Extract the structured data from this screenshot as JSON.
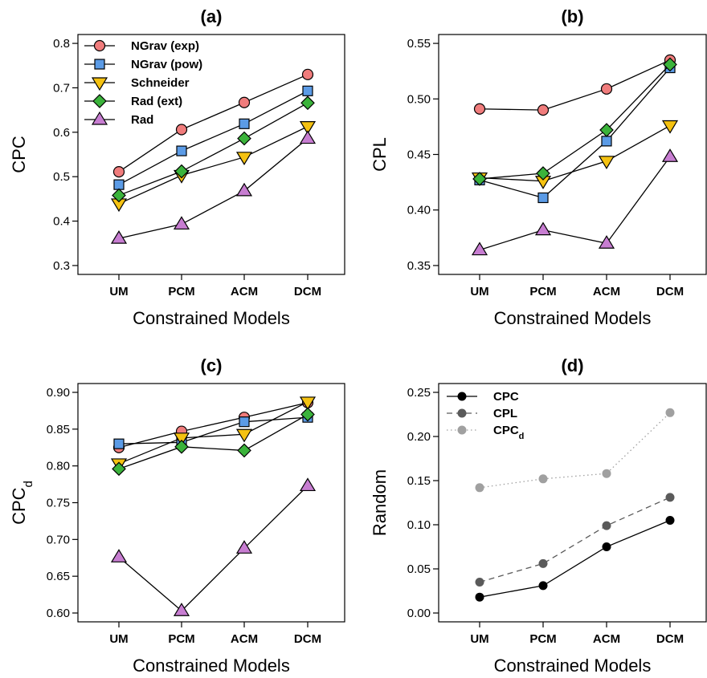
{
  "chart_data": [
    {
      "type": "line",
      "title": "(a)",
      "xlabel": "Constrained Models",
      "ylabel": "CPC",
      "ylabel_sub": "",
      "categories": [
        "UM",
        "PCM",
        "ACM",
        "DCM"
      ],
      "ylim": [
        0.3,
        0.8
      ],
      "yticks": [
        "0.3",
        "0.4",
        "0.5",
        "0.6",
        "0.7",
        "0.8"
      ],
      "legend_position": "top-left",
      "series": [
        {
          "name": "NGrav (exp)",
          "marker": "circle",
          "color": "#f07c7c",
          "line": "solid",
          "values": [
            0.511,
            0.606,
            0.667,
            0.73
          ]
        },
        {
          "name": "NGrav (pow)",
          "marker": "square",
          "color": "#5b9be6",
          "line": "solid",
          "values": [
            0.482,
            0.558,
            0.619,
            0.693
          ]
        },
        {
          "name": "Schneider",
          "marker": "triangle-down",
          "color": "#f5c211",
          "line": "solid",
          "values": [
            0.439,
            0.503,
            0.544,
            0.613
          ]
        },
        {
          "name": "Rad (ext)",
          "marker": "diamond",
          "color": "#3bb33b",
          "line": "solid",
          "values": [
            0.458,
            0.512,
            0.586,
            0.666
          ]
        },
        {
          "name": "Rad",
          "marker": "triangle-up",
          "color": "#c77dd1",
          "line": "solid",
          "values": [
            0.361,
            0.393,
            0.468,
            0.586
          ]
        }
      ]
    },
    {
      "type": "line",
      "title": "(b)",
      "xlabel": "Constrained Models",
      "ylabel": "CPL",
      "ylabel_sub": "",
      "categories": [
        "UM",
        "PCM",
        "ACM",
        "DCM"
      ],
      "ylim": [
        0.35,
        0.55
      ],
      "yticks": [
        "0.35",
        "0.40",
        "0.45",
        "0.50",
        "0.55"
      ],
      "series": [
        {
          "name": "NGrav (exp)",
          "marker": "circle",
          "color": "#f07c7c",
          "line": "solid",
          "values": [
            0.491,
            0.49,
            0.509,
            0.535
          ]
        },
        {
          "name": "NGrav (pow)",
          "marker": "square",
          "color": "#5b9be6",
          "line": "solid",
          "values": [
            0.427,
            0.411,
            0.462,
            0.528
          ]
        },
        {
          "name": "Schneider",
          "marker": "triangle-down",
          "color": "#f5c211",
          "line": "solid",
          "values": [
            0.429,
            0.426,
            0.444,
            0.476
          ]
        },
        {
          "name": "Rad (ext)",
          "marker": "diamond",
          "color": "#3bb33b",
          "line": "solid",
          "values": [
            0.428,
            0.433,
            0.472,
            0.531
          ]
        },
        {
          "name": "Rad",
          "marker": "triangle-up",
          "color": "#c77dd1",
          "line": "solid",
          "values": [
            0.364,
            0.382,
            0.37,
            0.448
          ]
        }
      ]
    },
    {
      "type": "line",
      "title": "(c)",
      "xlabel": "Constrained Models",
      "ylabel": "CPC",
      "ylabel_sub": "d",
      "categories": [
        "UM",
        "PCM",
        "ACM",
        "DCM"
      ],
      "ylim": [
        0.6,
        0.9
      ],
      "yticks": [
        "0.60",
        "0.65",
        "0.70",
        "0.75",
        "0.80",
        "0.85",
        "0.90"
      ],
      "series": [
        {
          "name": "NGrav (exp)",
          "marker": "circle",
          "color": "#f07c7c",
          "line": "solid",
          "values": [
            0.825,
            0.847,
            0.866,
            0.886
          ]
        },
        {
          "name": "NGrav (pow)",
          "marker": "square",
          "color": "#5b9be6",
          "line": "solid",
          "values": [
            0.83,
            0.832,
            0.86,
            0.866
          ]
        },
        {
          "name": "Schneider",
          "marker": "triangle-down",
          "color": "#f5c211",
          "line": "solid",
          "values": [
            0.803,
            0.838,
            0.843,
            0.887
          ]
        },
        {
          "name": "Rad (ext)",
          "marker": "diamond",
          "color": "#3bb33b",
          "line": "solid",
          "values": [
            0.796,
            0.826,
            0.821,
            0.87
          ]
        },
        {
          "name": "Rad",
          "marker": "triangle-up",
          "color": "#c77dd1",
          "line": "solid",
          "values": [
            0.676,
            0.603,
            0.688,
            0.773
          ]
        }
      ]
    },
    {
      "type": "line",
      "title": "(d)",
      "xlabel": "Constrained Models",
      "ylabel": "Random",
      "ylabel_sub": "",
      "categories": [
        "UM",
        "PCM",
        "ACM",
        "DCM"
      ],
      "ylim": [
        0.0,
        0.25
      ],
      "yticks": [
        "0.00",
        "0.05",
        "0.10",
        "0.15",
        "0.20",
        "0.25"
      ],
      "legend_position": "top-left",
      "series": [
        {
          "name": "CPC",
          "name_sub": "",
          "marker": "circle",
          "color": "#000000",
          "line": "solid",
          "values": [
            0.018,
            0.031,
            0.075,
            0.105
          ]
        },
        {
          "name": "CPL",
          "name_sub": "",
          "marker": "circle",
          "color": "#5a5a5a",
          "line": "dashed",
          "values": [
            0.035,
            0.056,
            0.099,
            0.131
          ]
        },
        {
          "name": "CPC",
          "name_sub": "d",
          "marker": "circle",
          "color": "#a0a0a0",
          "line": "dotted",
          "values": [
            0.142,
            0.152,
            0.158,
            0.227
          ]
        }
      ]
    }
  ]
}
